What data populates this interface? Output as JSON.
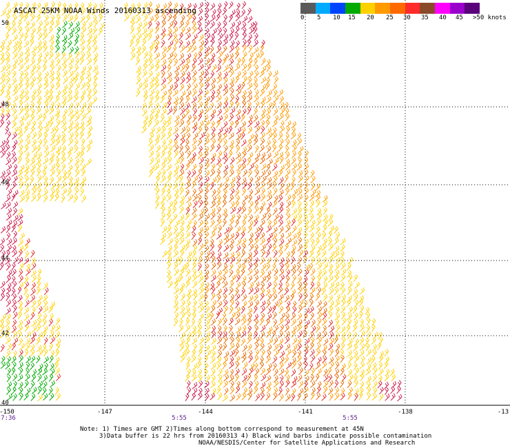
{
  "title": "ASCAT 25KM NOAA Winds 20160313 ascending",
  "legend": {
    "colors": [
      "#5a5a5a",
      "#00aaff",
      "#0044ff",
      "#00aa00",
      "#ffd000",
      "#ff9a00",
      "#ff6a00",
      "#ff2a2a",
      "#8a4a2a",
      "#ff00ff",
      "#9a00cc",
      "#5a007a"
    ],
    "labels": [
      "0",
      "5",
      "10",
      "15",
      "20",
      "25",
      "30",
      "35",
      "40",
      "45",
      ">50 knots"
    ]
  },
  "axes": {
    "lat_labels": [
      "50",
      "48",
      "46",
      "44",
      "42",
      "40"
    ],
    "lon_labels": [
      "-150",
      "-147",
      "-144",
      "-141",
      "-138",
      "-13"
    ],
    "time_labels": [
      "7:36",
      "5:55",
      "5:55"
    ]
  },
  "notes": [
    "Note: 1) Times are GMT 2)Times along bottom correspond to measurement at 45N",
    "3)Data buffer is 22 hrs from 20160313 4) Black wind barbs indicate possible contamination",
    "NOAA/NESDIS/Center for Satellite Applications and Research"
  ],
  "colors": {
    "yellow": "#ffd000",
    "orange": "#ff9a00",
    "dark_orange": "#e86a00",
    "red": "#e02a2a",
    "crimson": "#cc1a4a",
    "green": "#00aa00",
    "time_label": "#5a1a8a"
  }
}
